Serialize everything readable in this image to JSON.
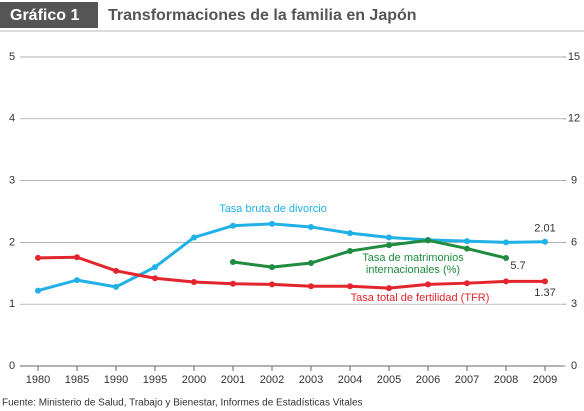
{
  "chart_data": {
    "type": "line",
    "badge": "Gráfico 1",
    "title": "Transformaciones de la familia en Japón",
    "source": "Fuente: Ministerio de Salud, Trabajo y Bienestar, Informes de Estadísticas Vitales",
    "categories": [
      "1980",
      "1985",
      "1990",
      "1995",
      "2000",
      "2001",
      "2002",
      "2003",
      "2004",
      "2005",
      "2006",
      "2007",
      "2008",
      "2009"
    ],
    "ylim": [
      0,
      5
    ],
    "yticks": [
      0,
      1,
      2,
      3,
      4,
      5
    ],
    "y2lim": [
      0,
      15
    ],
    "y2ticks": [
      0,
      3,
      6,
      9,
      12,
      15
    ],
    "grid": true,
    "annotations": [
      "5.7"
    ],
    "series": [
      {
        "name": "Tasa bruta de divorcio",
        "color": "#22b1e6",
        "values": [
          1.22,
          1.39,
          1.28,
          1.6,
          2.08,
          2.27,
          2.3,
          2.25,
          2.15,
          2.08,
          2.04,
          2.02,
          2.0,
          2.01
        ],
        "value_labels": [
          null,
          null,
          null,
          null,
          null,
          null,
          null,
          null,
          null,
          null,
          null,
          null,
          null,
          "2.01"
        ]
      },
      {
        "name": "Tasa de matrimonios internacionales (%)",
        "color": "#1f8c3f",
        "axis": "y2",
        "values": [
          null,
          null,
          null,
          null,
          null,
          5.05,
          4.8,
          5.0,
          5.58,
          5.87,
          6.1,
          5.7,
          5.24,
          null
        ]
      },
      {
        "name": "Tasa total de fertilidad (TFR)",
        "color": "#e3262e",
        "values": [
          1.75,
          1.76,
          1.54,
          1.42,
          1.36,
          1.33,
          1.32,
          1.29,
          1.29,
          1.26,
          1.32,
          1.34,
          1.37,
          1.37
        ],
        "value_labels": [
          null,
          null,
          null,
          null,
          null,
          null,
          null,
          null,
          null,
          null,
          null,
          null,
          null,
          "1.37"
        ]
      }
    ]
  }
}
